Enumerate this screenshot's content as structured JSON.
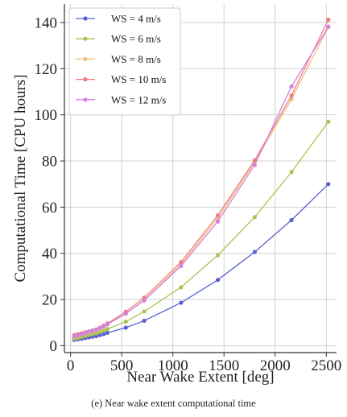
{
  "caption": "(e) Near wake extent computational time",
  "chart_data": {
    "type": "line",
    "xlabel": "Near Wake Extent [deg]",
    "ylabel": "Computational Time [CPU hours]",
    "xlim": [
      -60,
      2600
    ],
    "ylim": [
      -3,
      148
    ],
    "xticks": [
      0,
      500,
      1000,
      1500,
      2000,
      2500
    ],
    "yticks": [
      0,
      20,
      40,
      60,
      80,
      100,
      120,
      140
    ],
    "grid": true,
    "legend_position": "top-left",
    "x": [
      36,
      72,
      108,
      144,
      180,
      216,
      252,
      288,
      324,
      360,
      540,
      720,
      1080,
      1440,
      1800,
      2160,
      2520
    ],
    "series": [
      {
        "name": "WS = 4 m/s",
        "color": "#5a5fd0",
        "values": [
          2.5,
          2.8,
          3.0,
          3.3,
          3.6,
          3.9,
          4.2,
          4.6,
          5.0,
          5.6,
          7.8,
          10.8,
          18.6,
          28.5,
          40.6,
          54.4,
          70.0
        ]
      },
      {
        "name": "WS = 6 m/s",
        "color": "#a8c455",
        "values": [
          3.0,
          3.4,
          3.8,
          4.2,
          4.6,
          5.0,
          5.4,
          5.9,
          6.5,
          7.2,
          10.4,
          14.8,
          25.3,
          39.2,
          55.7,
          75.2,
          97.0
        ]
      },
      {
        "name": "WS = 8 m/s",
        "color": "#f0bd7a",
        "values": [
          3.8,
          4.3,
          4.8,
          5.3,
          5.8,
          6.3,
          6.8,
          7.5,
          8.3,
          9.2,
          13.8,
          19.8,
          35.2,
          55.3,
          79.5,
          106.8,
          138.0
        ]
      },
      {
        "name": "WS = 10 m/s",
        "color": "#ee7d80",
        "values": [
          4.6,
          5.0,
          5.4,
          5.8,
          6.2,
          6.6,
          7.1,
          7.8,
          8.7,
          9.6,
          14.7,
          20.8,
          36.2,
          56.5,
          80.3,
          108.4,
          141.2
        ]
      },
      {
        "name": "WS = 12 m/s",
        "color": "#d480e0",
        "values": [
          4.0,
          4.5,
          5.0,
          5.5,
          6.0,
          6.5,
          7.0,
          7.7,
          8.4,
          9.3,
          13.9,
          19.6,
          34.5,
          53.8,
          78.3,
          112.3,
          138.2
        ]
      }
    ]
  }
}
